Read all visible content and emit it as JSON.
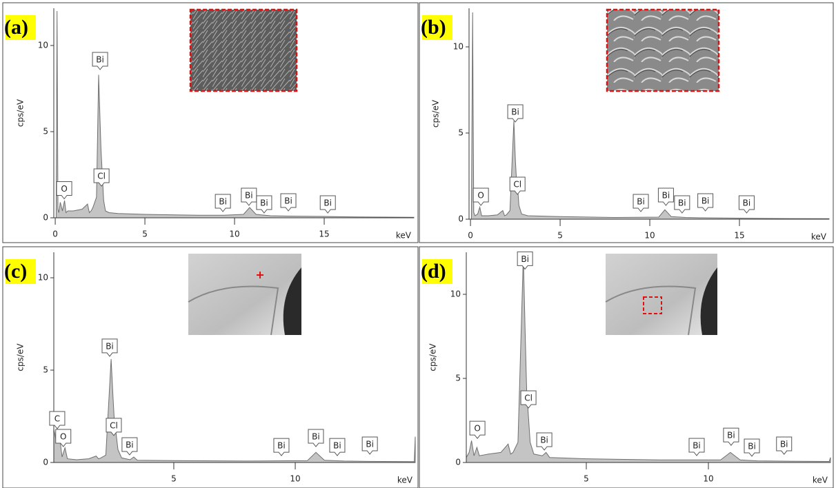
{
  "chart_data": [
    {
      "type": "area",
      "panel": "(a)",
      "ylabel": "cps/eV",
      "xlabel": "keV",
      "color": "#c4c4c4",
      "line_color": "#6e6e6e",
      "xlim": [
        -0.08,
        20
      ],
      "ylim": [
        0,
        12.16
      ],
      "xticks": [
        0,
        5,
        10,
        15
      ],
      "yticks": [
        0,
        5,
        10
      ],
      "x": [
        0.05,
        0.1,
        0.15,
        0.2,
        0.28,
        0.4,
        0.52,
        0.6,
        0.7,
        1.0,
        1.5,
        1.8,
        1.9,
        2.0,
        2.1,
        2.3,
        2.42,
        2.5,
        2.55,
        2.62,
        2.7,
        2.8,
        3.0,
        3.5,
        5,
        8,
        9.4,
        10.5,
        10.84,
        11.2,
        11.7,
        12,
        13,
        15,
        17,
        20
      ],
      "values": [
        0,
        12,
        0.5,
        0.3,
        0.9,
        0.4,
        1.0,
        0.3,
        0.4,
        0.4,
        0.5,
        0.8,
        0.3,
        0.4,
        0.6,
        1.2,
        8.3,
        5.6,
        4.0,
        2.6,
        1.0,
        0.4,
        0.3,
        0.25,
        0.2,
        0.15,
        0.15,
        0.2,
        0.6,
        0.2,
        0.15,
        0.12,
        0.1,
        0.08,
        0.05,
        0.03
      ],
      "annotations": [
        {
          "text": "O",
          "x": 0.5,
          "y": 1.1
        },
        {
          "text": "Bi",
          "x": 2.5,
          "y": 8.6
        },
        {
          "text": "Cl",
          "x": 2.58,
          "y": 1.84
        },
        {
          "text": "Bi",
          "x": 9.35,
          "y": 0.36
        },
        {
          "text": "Bi",
          "x": 10.8,
          "y": 0.72
        },
        {
          "text": "Bi",
          "x": 11.65,
          "y": 0.28
        },
        {
          "text": "Bi",
          "x": 13.0,
          "y": 0.4
        },
        {
          "text": "Bi",
          "x": 15.2,
          "y": 0.28
        }
      ]
    },
    {
      "type": "area",
      "panel": "(b)",
      "ylabel": "cps/eV",
      "xlabel": "keV",
      "color": "#c4c4c4",
      "line_color": "#6e6e6e",
      "xlim": [
        -0.08,
        20
      ],
      "ylim": [
        0,
        12.24
      ],
      "xticks": [
        0,
        5,
        10,
        15
      ],
      "yticks": [
        0,
        5,
        10
      ],
      "x": [
        0.05,
        0.12,
        0.18,
        0.25,
        0.4,
        0.52,
        0.62,
        1.0,
        1.5,
        1.8,
        1.9,
        2.0,
        2.2,
        2.42,
        2.5,
        2.56,
        2.62,
        2.7,
        2.85,
        3.2,
        5,
        8,
        10.5,
        10.84,
        11.2,
        12,
        13,
        15,
        17,
        20
      ],
      "values": [
        0,
        12,
        0.4,
        0.2,
        0.3,
        0.7,
        0.2,
        0.2,
        0.25,
        0.5,
        0.2,
        0.25,
        0.5,
        5.7,
        3.5,
        2.4,
        2.0,
        0.8,
        0.3,
        0.2,
        0.15,
        0.1,
        0.12,
        0.55,
        0.15,
        0.1,
        0.08,
        0.06,
        0.04,
        0.03
      ],
      "annotations": [
        {
          "text": "O",
          "x": 0.58,
          "y": 0.8
        },
        {
          "text": "Bi",
          "x": 2.5,
          "y": 5.64
        },
        {
          "text": "Cl",
          "x": 2.62,
          "y": 1.44
        },
        {
          "text": "Bi",
          "x": 9.5,
          "y": 0.44
        },
        {
          "text": "Bi",
          "x": 10.9,
          "y": 0.8
        },
        {
          "text": "Bi",
          "x": 11.8,
          "y": 0.36
        },
        {
          "text": "Bi",
          "x": 13.1,
          "y": 0.48
        },
        {
          "text": "Bi",
          "x": 15.4,
          "y": 0.36
        }
      ]
    },
    {
      "type": "area",
      "panel": "(c)",
      "ylabel": "cps/eV",
      "xlabel": "keV",
      "color": "#c4c4c4",
      "line_color": "#6e6e6e",
      "xlim": [
        0.06,
        14.94
      ],
      "ylim": [
        0,
        11.38
      ],
      "xticks": [
        5,
        10
      ],
      "yticks": [
        0,
        5,
        10
      ],
      "x": [
        0.06,
        0.15,
        0.28,
        0.4,
        0.52,
        0.62,
        1.0,
        1.5,
        1.8,
        1.9,
        2.0,
        2.2,
        2.42,
        2.5,
        2.56,
        2.62,
        2.7,
        2.85,
        3.2,
        3.35,
        3.5,
        5,
        8,
        10.5,
        10.85,
        11.2,
        12,
        13,
        14.9,
        14.94
      ],
      "values": [
        1.8,
        1.2,
        1.6,
        0.3,
        0.8,
        0.2,
        0.15,
        0.2,
        0.35,
        0.2,
        0.25,
        0.4,
        5.6,
        3.5,
        2.1,
        1.6,
        0.7,
        0.25,
        0.15,
        0.3,
        0.12,
        0.1,
        0.08,
        0.1,
        0.55,
        0.12,
        0.08,
        0.06,
        0.05,
        1.4
      ],
      "annotations": [
        {
          "text": "C",
          "x": 0.2,
          "y": 1.83
        },
        {
          "text": "O",
          "x": 0.45,
          "y": 0.86
        },
        {
          "text": "Bi",
          "x": 2.36,
          "y": 5.75
        },
        {
          "text": "Cl",
          "x": 2.53,
          "y": 1.46
        },
        {
          "text": "Bi",
          "x": 3.18,
          "y": 0.41
        },
        {
          "text": "Bi",
          "x": 9.43,
          "y": 0.37
        },
        {
          "text": "Bi",
          "x": 10.85,
          "y": 0.86
        },
        {
          "text": "Bi",
          "x": 11.73,
          "y": 0.37
        },
        {
          "text": "Bi",
          "x": 13.07,
          "y": 0.45
        }
      ]
    },
    {
      "type": "area",
      "panel": "(d)",
      "ylabel": "cps/eV",
      "xlabel": "keV",
      "color": "#c4c4c4",
      "line_color": "#6e6e6e",
      "xlim": [
        0.085,
        15.0
      ],
      "ylim": [
        0,
        12.5
      ],
      "xticks": [
        5,
        10
      ],
      "yticks": [
        0,
        5,
        10
      ],
      "x": [
        0.085,
        0.2,
        0.3,
        0.4,
        0.52,
        0.62,
        1.0,
        1.5,
        1.8,
        1.9,
        2.0,
        2.2,
        2.42,
        2.5,
        2.56,
        2.62,
        2.7,
        2.85,
        3.2,
        3.35,
        3.5,
        5,
        8,
        10.5,
        10.9,
        11.3,
        12,
        13,
        14.95,
        15.0
      ],
      "values": [
        0.3,
        0.6,
        1.3,
        0.4,
        0.9,
        0.4,
        0.5,
        0.6,
        1.1,
        0.5,
        0.6,
        1.2,
        12.3,
        7.5,
        4.2,
        3.0,
        1.2,
        0.5,
        0.4,
        0.6,
        0.3,
        0.22,
        0.15,
        0.15,
        0.6,
        0.15,
        0.1,
        0.08,
        0.06,
        0.3
      ],
      "annotations": [
        {
          "text": "O",
          "x": 0.54,
          "y": 1.43
        },
        {
          "text": "Bi",
          "x": 2.49,
          "y": 11.5
        },
        {
          "text": "Cl",
          "x": 2.63,
          "y": 3.24
        },
        {
          "text": "Bi",
          "x": 3.28,
          "y": 0.74
        },
        {
          "text": "Bi",
          "x": 9.52,
          "y": 0.41
        },
        {
          "text": "Bi",
          "x": 10.93,
          "y": 1.02
        },
        {
          "text": "Bi",
          "x": 11.78,
          "y": 0.37
        },
        {
          "text": "Bi",
          "x": 13.1,
          "y": 0.49
        }
      ]
    }
  ]
}
